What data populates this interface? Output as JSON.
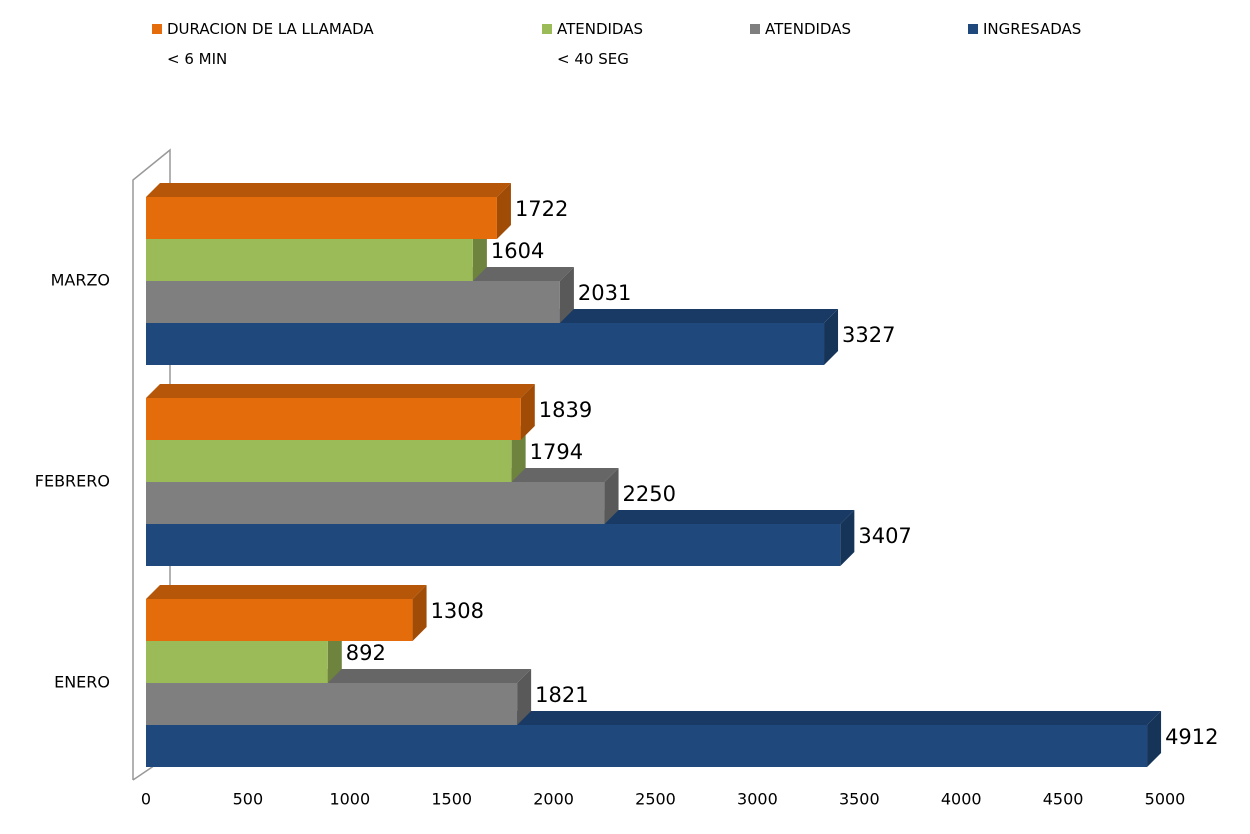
{
  "chart_data": {
    "type": "bar",
    "orientation": "horizontal",
    "3d": true,
    "categories": [
      "ENERO",
      "FEBRERO",
      "MARZO"
    ],
    "series": [
      {
        "name": "DURACION DE LA LLAMADA\n< 6  MIN",
        "color": "#e46c0a",
        "values": [
          1308,
          1839,
          1722
        ]
      },
      {
        "name": "ATENDIDAS\n< 40 SEG",
        "color": "#9bbb59",
        "values": [
          892,
          1794,
          1604
        ]
      },
      {
        "name": "ATENDIDAS",
        "color": "#7f7f7f",
        "values": [
          1821,
          2250,
          2031
        ]
      },
      {
        "name": "INGRESADAS",
        "color": "#1f497d",
        "values": [
          4912,
          3407,
          3327
        ]
      }
    ],
    "xlim": [
      0,
      5000
    ],
    "xticks": [
      0,
      500,
      1000,
      1500,
      2000,
      2500,
      3000,
      3500,
      4000,
      4500,
      5000
    ],
    "grid": false,
    "legend": "top"
  }
}
